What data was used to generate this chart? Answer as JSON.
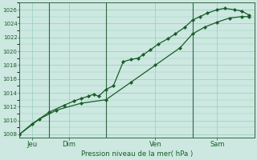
{
  "xlabel": "Pression niveau de la mer( hPa )",
  "bg_color": "#cce8e0",
  "grid_color": "#99ccbb",
  "line_color": "#1a5c2a",
  "spine_color": "#336644",
  "ylim": [
    1007.5,
    1027.0
  ],
  "yticks": [
    1008,
    1010,
    1012,
    1014,
    1016,
    1018,
    1020,
    1022,
    1024,
    1026
  ],
  "xlim": [
    0,
    9.5
  ],
  "day_ticks": [
    0.5,
    2.0,
    5.5,
    8.0
  ],
  "day_labels": [
    "Jeu",
    "Dim",
    "Ven",
    "Sam"
  ],
  "vline_positions": [
    1.2,
    3.5,
    7.0
  ],
  "line1_x": [
    0.0,
    0.5,
    1.2,
    1.8,
    2.2,
    2.5,
    2.8,
    3.0,
    3.2,
    3.5,
    3.8,
    4.2,
    4.5,
    4.8,
    5.0,
    5.3,
    5.6,
    6.0,
    6.3,
    6.7,
    7.0,
    7.3,
    7.6,
    8.0,
    8.3,
    8.7,
    9.0,
    9.3
  ],
  "line1_y": [
    1008.0,
    1009.5,
    1011.2,
    1012.2,
    1012.8,
    1013.2,
    1013.5,
    1013.8,
    1013.5,
    1014.5,
    1015.0,
    1018.5,
    1018.8,
    1019.0,
    1019.5,
    1020.2,
    1021.0,
    1021.8,
    1022.5,
    1023.5,
    1024.5,
    1025.0,
    1025.5,
    1026.0,
    1026.2,
    1026.0,
    1025.8,
    1025.2
  ],
  "line2_x": [
    0.0,
    0.8,
    1.5,
    2.5,
    3.5,
    4.5,
    5.5,
    6.5,
    7.0,
    7.5,
    8.0,
    8.5,
    9.0,
    9.3
  ],
  "line2_y": [
    1008.0,
    1010.2,
    1011.5,
    1012.5,
    1013.0,
    1015.5,
    1018.0,
    1020.5,
    1022.5,
    1023.5,
    1024.2,
    1024.8,
    1025.0,
    1025.0
  ]
}
